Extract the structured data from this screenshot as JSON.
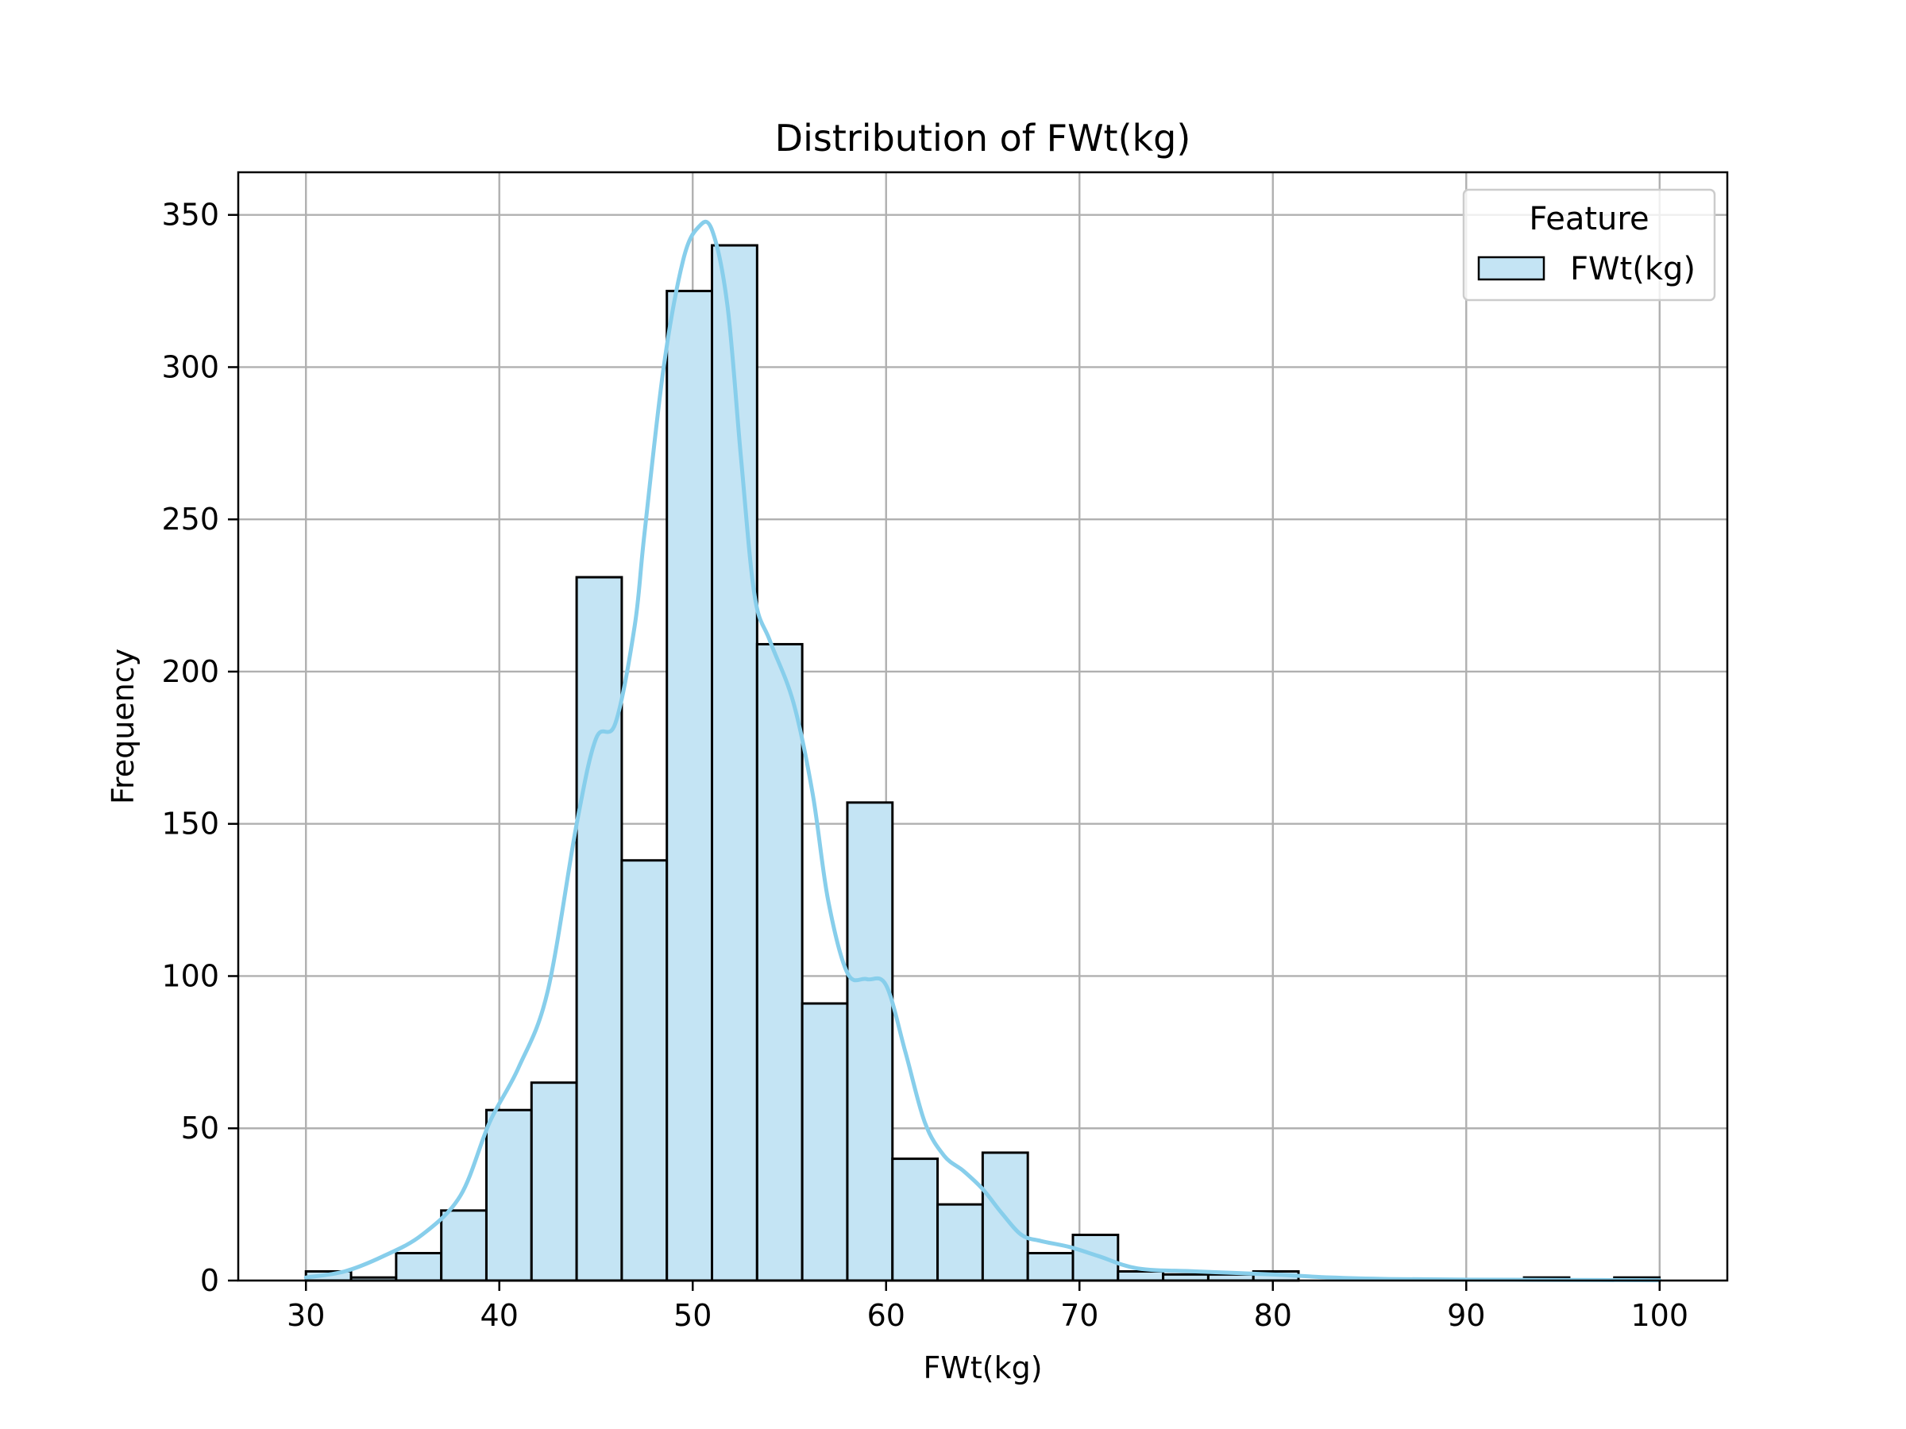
{
  "chart_data": {
    "type": "bar",
    "title": "Distribution of FWt(kg)",
    "xlabel": "FWt(kg)",
    "ylabel": "Frequency",
    "xlim": [
      26.5,
      103.5
    ],
    "ylim": [
      0,
      364
    ],
    "grid": true,
    "xticks": [
      30,
      40,
      50,
      60,
      70,
      80,
      90,
      100
    ],
    "yticks": [
      0,
      50,
      100,
      150,
      200,
      250,
      300,
      350
    ],
    "bins": {
      "start": 30,
      "width": 2.333,
      "counts": [
        3,
        1,
        9,
        23,
        56,
        65,
        231,
        138,
        325,
        340,
        209,
        91,
        157,
        40,
        25,
        42,
        9,
        15,
        3,
        2,
        2,
        3,
        0,
        0,
        0,
        0,
        0,
        1,
        0,
        1
      ]
    },
    "kde": {
      "x": [
        30,
        32,
        34,
        36,
        38,
        39.5,
        41,
        42.5,
        44,
        45,
        46,
        47,
        47.5,
        48.5,
        49.5,
        50.3,
        51,
        51.8,
        52.5,
        53.2,
        54,
        55.2,
        56.2,
        57,
        58,
        59,
        60,
        61,
        62,
        63,
        64,
        65,
        66,
        67,
        68,
        69.5,
        71,
        73,
        76,
        80,
        83,
        86,
        90,
        95,
        100
      ],
      "y": [
        1,
        3,
        8,
        15,
        28,
        52,
        70,
        95,
        150,
        178,
        183,
        215,
        245,
        300,
        335,
        346,
        345,
        320,
        270,
        225,
        210,
        190,
        160,
        125,
        101,
        99,
        97,
        75,
        52,
        41,
        36,
        30,
        22,
        15,
        13,
        11,
        8,
        4,
        3,
        2,
        1,
        0.5,
        0.3,
        0.2,
        0.1
      ]
    },
    "legend": {
      "title": "Feature",
      "entries": [
        "FWt(kg)"
      ],
      "position": "top-right"
    },
    "colors": {
      "bar_fill": "#c4e4f4",
      "bar_edge": "#000000",
      "kde_line": "#87ceeb",
      "grid": "#b0b0b0"
    }
  }
}
